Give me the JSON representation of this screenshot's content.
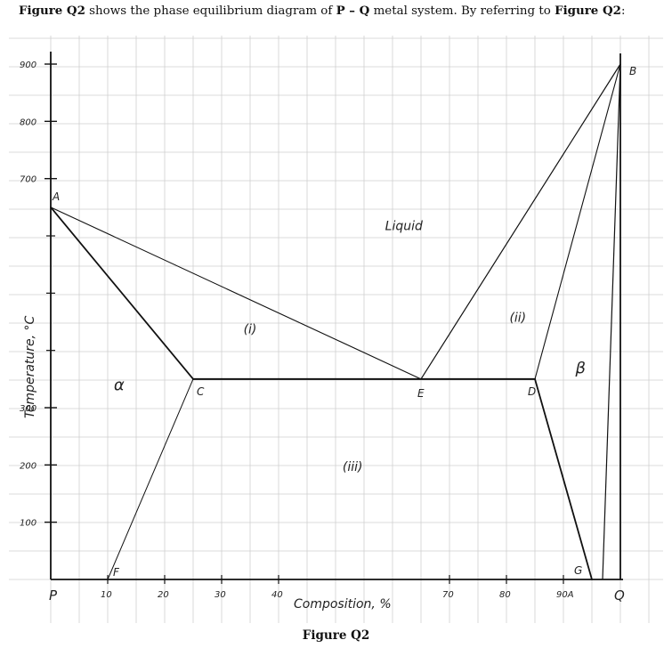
{
  "header": {
    "figure_ref": "Figure Q2",
    "text_middle": " shows the phase equilibrium diagram of ",
    "system": "P – Q",
    "text_after": " metal system. By referring to ",
    "figure_ref2": "Figure Q2",
    "colon": ":"
  },
  "caption": "Figure Q2",
  "chart_data": {
    "type": "phase-diagram",
    "ylabel": "Temperature, °C",
    "xlabel": "Composition, %",
    "x_ticks": [
      "10",
      "20",
      "30",
      "40",
      "70",
      "80",
      "90A"
    ],
    "y_ticks": [
      "100",
      "200",
      "300",
      "700",
      "800",
      "900"
    ],
    "x_end_labels": {
      "left": "P",
      "right": "Q"
    },
    "grid": true,
    "points": {
      "A": {
        "label": "A",
        "x": 0,
        "y": 650
      },
      "B": {
        "label": "B",
        "x": 100,
        "y": 900
      },
      "C": {
        "label": "C",
        "x": 25,
        "y": 350
      },
      "E": {
        "label": "E",
        "x": 65,
        "y": 350
      },
      "D": {
        "label": "D",
        "x": 85,
        "y": 350
      },
      "F": {
        "label": "F",
        "x": 10,
        "y": 0
      },
      "G": {
        "label": "G",
        "x": 95,
        "y": 0
      }
    },
    "lines": [
      [
        "A",
        "C"
      ],
      [
        "A",
        "E"
      ],
      [
        "C",
        "D"
      ],
      [
        "E",
        "B"
      ],
      [
        "D",
        "B"
      ],
      [
        "C",
        "F"
      ],
      [
        "D",
        "G"
      ]
    ],
    "regions": [
      {
        "label": "Liquid",
        "x": 62,
        "y": 610
      },
      {
        "label": "(i)",
        "x": 35,
        "y": 430
      },
      {
        "label": "(ii)",
        "x": 82,
        "y": 450
      },
      {
        "label": "(iii)",
        "x": 53,
        "y": 190
      },
      {
        "label": "α",
        "x": 12,
        "y": 330
      },
      {
        "label": "β",
        "x": 93,
        "y": 360
      }
    ]
  }
}
